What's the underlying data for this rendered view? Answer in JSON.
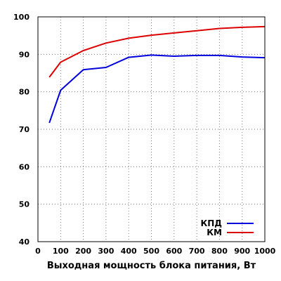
{
  "chart_data": {
    "type": "line",
    "title": "",
    "xlabel": "Выходная мощность блока питания, Вт",
    "ylabel": "",
    "xlim": [
      0,
      1000
    ],
    "ylim": [
      40,
      100
    ],
    "xticks": [
      0,
      100,
      200,
      300,
      400,
      500,
      600,
      700,
      800,
      900,
      1000
    ],
    "yticks": [
      40,
      50,
      60,
      70,
      80,
      90,
      100
    ],
    "grid": true,
    "legend_position": "bottom-right",
    "series": [
      {
        "name": "КПД",
        "color": "#0000dd",
        "x": [
          50,
          100,
          200,
          300,
          400,
          500,
          600,
          700,
          800,
          900,
          1000
        ],
        "y": [
          71.7,
          80.4,
          85.9,
          86.5,
          89.2,
          89.8,
          89.5,
          89.7,
          89.7,
          89.3,
          89.1
        ]
      },
      {
        "name": "КМ",
        "color": "#dd0000",
        "x": [
          50,
          100,
          200,
          300,
          400,
          500,
          600,
          700,
          800,
          900,
          1000
        ],
        "y": [
          83.9,
          87.9,
          91.0,
          93.0,
          94.3,
          95.1,
          95.7,
          96.3,
          96.9,
          97.2,
          97.4
        ]
      }
    ]
  }
}
